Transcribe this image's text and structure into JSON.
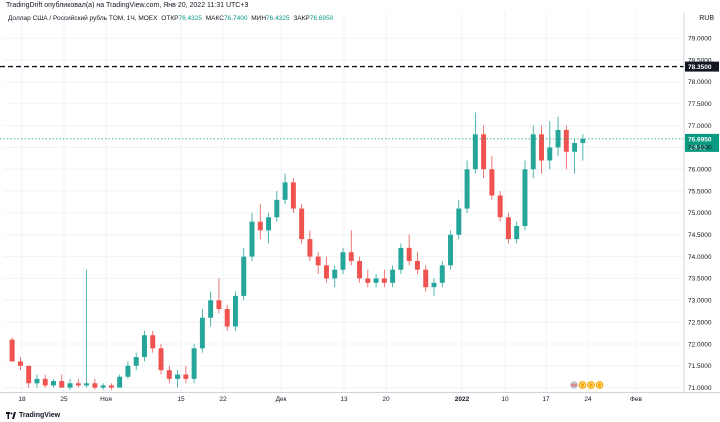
{
  "header": {
    "published_by": "TradingDrift опубликовал(а) на TradingView.com, Янв 20, 2022 11:31 UTC+3"
  },
  "legend": {
    "symbol": "Доллар США / Российский рубль TOM, 1Ч, MOEX",
    "open_label": "ОТКР",
    "open_value": "76.4325",
    "high_label": "МАКС",
    "high_value": "76.7400",
    "low_label": "МИН",
    "low_value": "76.4325",
    "close_label": "ЗАКР",
    "close_value": "76.6950"
  },
  "settings": {
    "currency": "RUB"
  },
  "chart_data": {
    "type": "candlestick",
    "y_ticks": [
      "79.0000",
      "78.5000",
      "78.0000",
      "77.5000",
      "77.0000",
      "76.5000",
      "76.0000",
      "75.5000",
      "75.0000",
      "74.5000",
      "74.0000",
      "73.5000",
      "73.0000",
      "72.5000",
      "72.0000",
      "71.5000",
      "71.0000"
    ],
    "ylim": [
      70.9,
      79.6
    ],
    "x_ticks": [
      "18",
      "25",
      "Ноя",
      "15",
      "22",
      "Дек",
      "13",
      "20",
      "2022",
      "10",
      "17",
      "24",
      "Фев"
    ],
    "horizontal_line": {
      "value": 78.35,
      "label": "78.3500",
      "color": "#131722"
    },
    "last_price": {
      "value": 76.695,
      "label": "76.6950",
      "countdown": "28:12",
      "color": "#089981"
    },
    "candles": [
      {
        "o": 72.1,
        "h": 72.15,
        "l": 71.6,
        "c": 71.6
      },
      {
        "o": 71.6,
        "h": 71.7,
        "l": 71.4,
        "c": 71.5
      },
      {
        "o": 71.5,
        "h": 71.5,
        "l": 71.0,
        "c": 71.1
      },
      {
        "o": 71.1,
        "h": 71.3,
        "l": 71.0,
        "c": 71.2
      },
      {
        "o": 71.2,
        "h": 71.3,
        "l": 71.0,
        "c": 71.05
      },
      {
        "o": 71.05,
        "h": 71.2,
        "l": 71.0,
        "c": 71.15
      },
      {
        "o": 71.15,
        "h": 71.3,
        "l": 71.0,
        "c": 71.0
      },
      {
        "o": 71.0,
        "h": 71.2,
        "l": 70.95,
        "c": 71.1
      },
      {
        "o": 71.1,
        "h": 71.2,
        "l": 71.0,
        "c": 71.05
      },
      {
        "o": 71.05,
        "h": 73.7,
        "l": 71.0,
        "c": 71.1
      },
      {
        "o": 71.1,
        "h": 71.2,
        "l": 70.95,
        "c": 71.0
      },
      {
        "o": 71.0,
        "h": 71.1,
        "l": 70.95,
        "c": 71.05
      },
      {
        "o": 71.05,
        "h": 71.1,
        "l": 70.95,
        "c": 71.0
      },
      {
        "o": 71.0,
        "h": 71.3,
        "l": 71.0,
        "c": 71.25
      },
      {
        "o": 71.25,
        "h": 71.6,
        "l": 71.2,
        "c": 71.5
      },
      {
        "o": 71.5,
        "h": 71.8,
        "l": 71.4,
        "c": 71.7
      },
      {
        "o": 71.7,
        "h": 72.3,
        "l": 71.6,
        "c": 72.2
      },
      {
        "o": 72.2,
        "h": 72.3,
        "l": 71.8,
        "c": 71.9
      },
      {
        "o": 71.9,
        "h": 72.0,
        "l": 71.3,
        "c": 71.4
      },
      {
        "o": 71.4,
        "h": 71.5,
        "l": 71.1,
        "c": 71.2
      },
      {
        "o": 71.2,
        "h": 71.4,
        "l": 71.0,
        "c": 71.3
      },
      {
        "o": 71.3,
        "h": 71.5,
        "l": 71.1,
        "c": 71.2
      },
      {
        "o": 71.2,
        "h": 72.0,
        "l": 71.1,
        "c": 71.9
      },
      {
        "o": 71.9,
        "h": 72.8,
        "l": 71.8,
        "c": 72.6
      },
      {
        "o": 72.6,
        "h": 73.2,
        "l": 72.4,
        "c": 73.0
      },
      {
        "o": 73.0,
        "h": 73.5,
        "l": 72.7,
        "c": 72.8
      },
      {
        "o": 72.8,
        "h": 72.9,
        "l": 72.3,
        "c": 72.4
      },
      {
        "o": 72.4,
        "h": 73.2,
        "l": 72.3,
        "c": 73.1
      },
      {
        "o": 73.1,
        "h": 74.2,
        "l": 73.0,
        "c": 74.0
      },
      {
        "o": 74.0,
        "h": 75.0,
        "l": 73.9,
        "c": 74.8
      },
      {
        "o": 74.8,
        "h": 75.2,
        "l": 74.4,
        "c": 74.6
      },
      {
        "o": 74.6,
        "h": 75.0,
        "l": 74.3,
        "c": 74.9
      },
      {
        "o": 74.9,
        "h": 75.5,
        "l": 74.8,
        "c": 75.3
      },
      {
        "o": 75.3,
        "h": 75.9,
        "l": 75.2,
        "c": 75.7
      },
      {
        "o": 75.7,
        "h": 75.8,
        "l": 75.0,
        "c": 75.1
      },
      {
        "o": 75.1,
        "h": 75.2,
        "l": 74.3,
        "c": 74.4
      },
      {
        "o": 74.4,
        "h": 74.6,
        "l": 73.9,
        "c": 74.0
      },
      {
        "o": 74.0,
        "h": 74.1,
        "l": 73.6,
        "c": 73.8
      },
      {
        "o": 73.8,
        "h": 74.0,
        "l": 73.4,
        "c": 73.5
      },
      {
        "o": 73.5,
        "h": 73.8,
        "l": 73.3,
        "c": 73.7
      },
      {
        "o": 73.7,
        "h": 74.2,
        "l": 73.6,
        "c": 74.1
      },
      {
        "o": 74.1,
        "h": 74.6,
        "l": 73.8,
        "c": 73.9
      },
      {
        "o": 73.9,
        "h": 74.0,
        "l": 73.4,
        "c": 73.5
      },
      {
        "o": 73.5,
        "h": 73.7,
        "l": 73.3,
        "c": 73.4
      },
      {
        "o": 73.4,
        "h": 73.6,
        "l": 73.3,
        "c": 73.5
      },
      {
        "o": 73.5,
        "h": 73.7,
        "l": 73.3,
        "c": 73.4
      },
      {
        "o": 73.4,
        "h": 73.8,
        "l": 73.3,
        "c": 73.7
      },
      {
        "o": 73.7,
        "h": 74.3,
        "l": 73.6,
        "c": 74.2
      },
      {
        "o": 74.2,
        "h": 74.5,
        "l": 73.8,
        "c": 73.9
      },
      {
        "o": 73.9,
        "h": 74.1,
        "l": 73.6,
        "c": 73.7
      },
      {
        "o": 73.7,
        "h": 73.8,
        "l": 73.2,
        "c": 73.3
      },
      {
        "o": 73.3,
        "h": 73.5,
        "l": 73.1,
        "c": 73.4
      },
      {
        "o": 73.4,
        "h": 73.9,
        "l": 73.3,
        "c": 73.8
      },
      {
        "o": 73.8,
        "h": 74.6,
        "l": 73.7,
        "c": 74.5
      },
      {
        "o": 74.5,
        "h": 75.3,
        "l": 74.4,
        "c": 75.1
      },
      {
        "o": 75.1,
        "h": 76.2,
        "l": 75.0,
        "c": 76.0
      },
      {
        "o": 76.0,
        "h": 77.3,
        "l": 75.9,
        "c": 76.8
      },
      {
        "o": 76.8,
        "h": 77.0,
        "l": 75.8,
        "c": 76.0
      },
      {
        "o": 76.0,
        "h": 76.3,
        "l": 75.3,
        "c": 75.4
      },
      {
        "o": 75.4,
        "h": 75.5,
        "l": 74.8,
        "c": 74.9
      },
      {
        "o": 74.9,
        "h": 75.0,
        "l": 74.3,
        "c": 74.4
      },
      {
        "o": 74.4,
        "h": 74.8,
        "l": 74.3,
        "c": 74.7
      },
      {
        "o": 74.7,
        "h": 76.2,
        "l": 74.6,
        "c": 76.0
      },
      {
        "o": 76.0,
        "h": 77.0,
        "l": 75.8,
        "c": 76.8
      },
      {
        "o": 76.8,
        "h": 77.0,
        "l": 75.9,
        "c": 76.2
      },
      {
        "o": 76.2,
        "h": 77.1,
        "l": 76.0,
        "c": 76.5
      },
      {
        "o": 76.5,
        "h": 77.2,
        "l": 76.3,
        "c": 76.9
      },
      {
        "o": 76.9,
        "h": 77.0,
        "l": 76.0,
        "c": 76.4
      },
      {
        "o": 76.4,
        "h": 76.7,
        "l": 75.9,
        "c": 76.6
      },
      {
        "o": 76.6,
        "h": 76.8,
        "l": 76.2,
        "c": 76.695
      }
    ]
  },
  "footer": {
    "brand": "TradingView",
    "event_icons": [
      "us-flag-icon",
      "coin-icon",
      "coin-icon",
      "coin-icon"
    ]
  }
}
